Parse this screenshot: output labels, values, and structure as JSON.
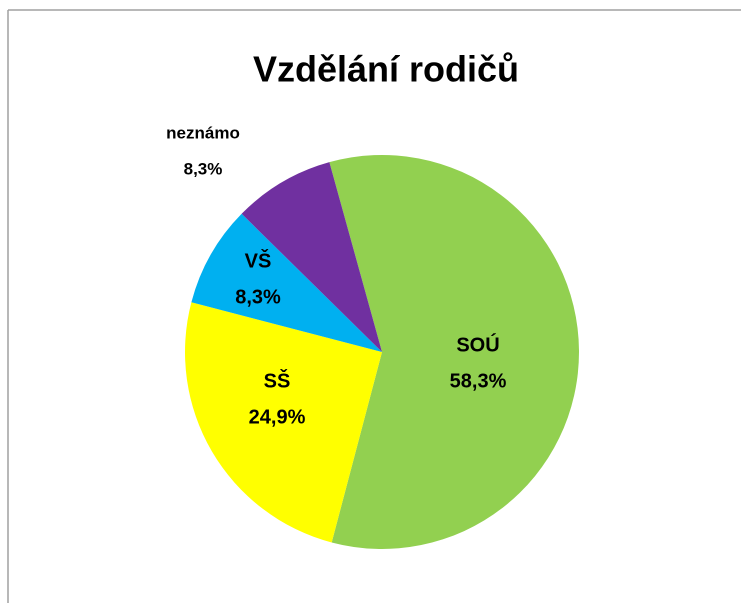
{
  "chart_data": {
    "type": "pie",
    "title": "Vzdělání rodičů",
    "categories": [
      "SOÚ",
      "SŠ",
      "VŠ",
      "neznámo"
    ],
    "values": [
      58.3,
      24.9,
      8.3,
      8.3
    ],
    "value_labels": [
      "58,3%",
      "24,9%",
      "8,3%",
      "8,3%"
    ],
    "colors": [
      "#92d050",
      "#ffff00",
      "#00b0f0",
      "#7030a0"
    ]
  }
}
